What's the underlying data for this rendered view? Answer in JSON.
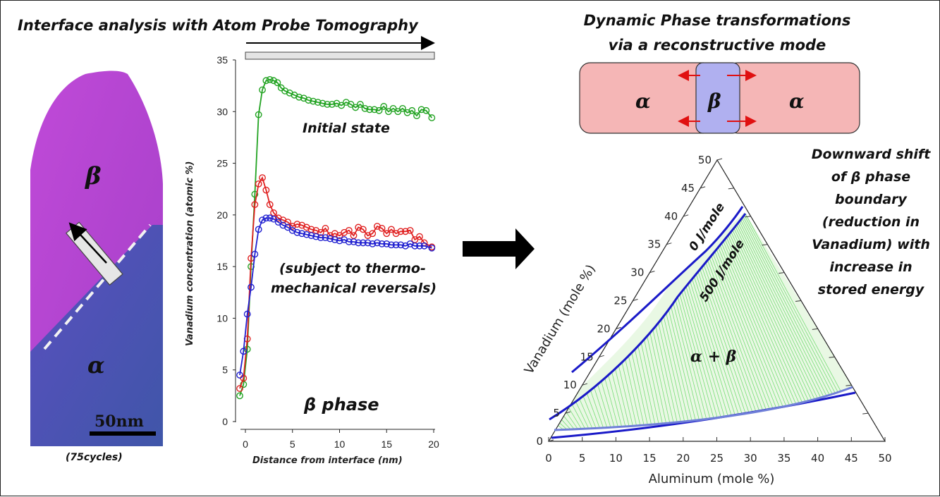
{
  "left_panel": {
    "title": "Interface analysis with Atom Probe Tomography",
    "beta_label": "β",
    "alpha_label": "α",
    "scale_label": "50nm",
    "caption": "(75cycles)"
  },
  "chart_data": {
    "type": "line",
    "x_label": "Distance from interface (nm)",
    "y_label": "Vanadium concentration (atomic %)",
    "xlim": [
      -1,
      20
    ],
    "ylim": [
      0,
      35
    ],
    "x_ticks": [
      "0",
      "5",
      "10",
      "15",
      "20"
    ],
    "y_ticks": [
      "0",
      "5",
      "10",
      "15",
      "20",
      "25",
      "30",
      "35"
    ],
    "annotations": [
      "Initial state",
      "(subject to thermo-",
      "mechanical reversals)",
      "β phase"
    ],
    "series": [
      {
        "color": "#22a322",
        "points": [
          [
            -0.6,
            2.5
          ],
          [
            -0.2,
            3.6
          ],
          [
            0.2,
            7.0
          ],
          [
            0.6,
            15.0
          ],
          [
            1.0,
            22.0
          ],
          [
            1.4,
            29.7
          ],
          [
            1.8,
            32.1
          ],
          [
            2.2,
            33.0
          ],
          [
            2.6,
            33.1
          ],
          [
            3.0,
            33.0
          ],
          [
            3.4,
            32.8
          ],
          [
            3.8,
            32.3
          ],
          [
            4.2,
            32.0
          ],
          [
            4.7,
            31.8
          ],
          [
            5.2,
            31.6
          ],
          [
            5.7,
            31.4
          ],
          [
            6.2,
            31.3
          ],
          [
            6.7,
            31.1
          ],
          [
            7.2,
            31.0
          ],
          [
            7.7,
            30.9
          ],
          [
            8.2,
            30.8
          ],
          [
            8.7,
            30.7
          ],
          [
            9.2,
            30.7
          ],
          [
            9.7,
            30.8
          ],
          [
            10.2,
            30.6
          ],
          [
            10.7,
            30.9
          ],
          [
            11.2,
            30.7
          ],
          [
            11.7,
            30.4
          ],
          [
            12.2,
            30.7
          ],
          [
            12.7,
            30.3
          ],
          [
            13.2,
            30.2
          ],
          [
            13.7,
            30.2
          ],
          [
            14.2,
            30.1
          ],
          [
            14.7,
            30.5
          ],
          [
            15.2,
            30.0
          ],
          [
            15.7,
            30.3
          ],
          [
            16.2,
            30.0
          ],
          [
            16.7,
            30.3
          ],
          [
            17.2,
            29.9
          ],
          [
            17.7,
            30.1
          ],
          [
            18.2,
            29.6
          ],
          [
            18.7,
            30.2
          ],
          [
            19.2,
            30.1
          ],
          [
            19.8,
            29.4
          ]
        ]
      },
      {
        "color": "#e02020",
        "points": [
          [
            -0.6,
            3.2
          ],
          [
            -0.2,
            4.2
          ],
          [
            0.2,
            8.0
          ],
          [
            0.6,
            15.8
          ],
          [
            1.0,
            21.0
          ],
          [
            1.4,
            23.0
          ],
          [
            1.8,
            23.6
          ],
          [
            2.2,
            22.4
          ],
          [
            2.6,
            21.0
          ],
          [
            3.0,
            20.2
          ],
          [
            3.5,
            19.7
          ],
          [
            4.0,
            19.5
          ],
          [
            4.5,
            19.3
          ],
          [
            5.0,
            18.9
          ],
          [
            5.5,
            19.1
          ],
          [
            6.0,
            19.0
          ],
          [
            6.5,
            18.8
          ],
          [
            7.0,
            18.6
          ],
          [
            7.5,
            18.5
          ],
          [
            8.0,
            18.3
          ],
          [
            8.5,
            18.7
          ],
          [
            9.0,
            18.0
          ],
          [
            9.5,
            18.2
          ],
          [
            10.0,
            18.0
          ],
          [
            10.5,
            18.3
          ],
          [
            11.0,
            18.5
          ],
          [
            11.5,
            18.0
          ],
          [
            12.0,
            18.8
          ],
          [
            12.5,
            18.6
          ],
          [
            13.0,
            18.0
          ],
          [
            13.5,
            18.2
          ],
          [
            14.0,
            18.9
          ],
          [
            14.5,
            18.7
          ],
          [
            15.0,
            18.2
          ],
          [
            15.5,
            18.6
          ],
          [
            16.0,
            18.2
          ],
          [
            16.5,
            18.4
          ],
          [
            17.0,
            18.4
          ],
          [
            17.5,
            18.5
          ],
          [
            18.0,
            17.6
          ],
          [
            18.5,
            17.9
          ],
          [
            19.0,
            17.3
          ],
          [
            19.8,
            16.9
          ]
        ]
      },
      {
        "color": "#2020d0",
        "points": [
          [
            -0.6,
            4.5
          ],
          [
            -0.2,
            6.8
          ],
          [
            0.2,
            10.4
          ],
          [
            0.6,
            13.0
          ],
          [
            1.0,
            16.2
          ],
          [
            1.4,
            18.6
          ],
          [
            1.8,
            19.5
          ],
          [
            2.2,
            19.7
          ],
          [
            2.6,
            19.7
          ],
          [
            3.0,
            19.6
          ],
          [
            3.5,
            19.3
          ],
          [
            4.0,
            19.0
          ],
          [
            4.5,
            18.8
          ],
          [
            5.0,
            18.5
          ],
          [
            5.5,
            18.3
          ],
          [
            6.0,
            18.2
          ],
          [
            6.5,
            18.1
          ],
          [
            7.0,
            18.0
          ],
          [
            7.5,
            17.9
          ],
          [
            8.0,
            17.8
          ],
          [
            8.5,
            17.8
          ],
          [
            9.0,
            17.7
          ],
          [
            9.5,
            17.6
          ],
          [
            10.0,
            17.5
          ],
          [
            10.5,
            17.6
          ],
          [
            11.0,
            17.4
          ],
          [
            11.5,
            17.4
          ],
          [
            12.0,
            17.3
          ],
          [
            12.5,
            17.3
          ],
          [
            13.0,
            17.3
          ],
          [
            13.5,
            17.2
          ],
          [
            14.0,
            17.3
          ],
          [
            14.5,
            17.2
          ],
          [
            15.0,
            17.2
          ],
          [
            15.5,
            17.1
          ],
          [
            16.0,
            17.1
          ],
          [
            16.5,
            17.1
          ],
          [
            17.0,
            17.0
          ],
          [
            17.5,
            17.2
          ],
          [
            18.0,
            17.0
          ],
          [
            18.5,
            17.0
          ],
          [
            19.0,
            17.0
          ],
          [
            19.8,
            16.8
          ]
        ]
      }
    ]
  },
  "right_panel": {
    "title_line1": "Dynamic Phase transformations",
    "title_line2": "via a reconstructive mode",
    "left_alpha": "α",
    "center_beta": "β",
    "right_alpha": "α",
    "side_note": [
      "Downward shift",
      "of β phase",
      "boundary",
      "(reduction in",
      "Vanadium) with",
      "increase in",
      "stored energy"
    ],
    "ternary": {
      "x_axis_label": "Aluminum (mole %)",
      "left_axis_label": "Vanadium (mole %)",
      "x_ticks": [
        "0",
        "5",
        "10",
        "15",
        "20",
        "25",
        "30",
        "35",
        "40",
        "45",
        "50"
      ],
      "left_ticks": [
        "0",
        "5",
        "10",
        "15",
        "20",
        "25",
        "30",
        "35",
        "40",
        "45",
        "50"
      ],
      "curve_label_0": "0 J/mole",
      "curve_label_500": "500 J/mole",
      "region_label": "α + β"
    }
  }
}
